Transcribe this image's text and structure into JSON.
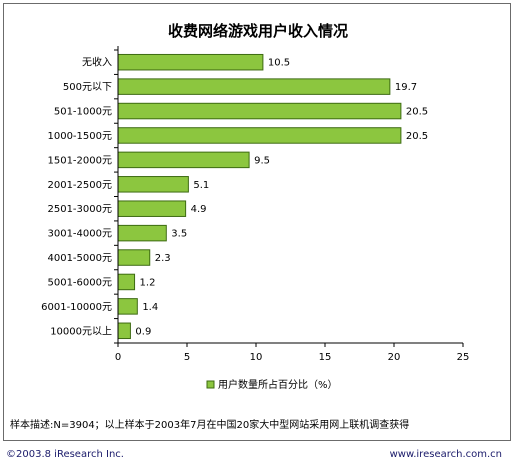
{
  "chart_data": {
    "type": "bar",
    "orientation": "horizontal",
    "title": "收费网络游戏用户收入情况",
    "categories": [
      "无收入",
      "500元以下",
      "501-1000元",
      "1000-1500元",
      "1501-2000元",
      "2001-2500元",
      "2501-3000元",
      "3001-4000元",
      "4001-5000元",
      "5001-6000元",
      "6001-10000元",
      "10000元以上"
    ],
    "series": [
      {
        "name": "用户数量所占百分比（%）",
        "values": [
          10.5,
          19.7,
          20.5,
          20.5,
          9.5,
          5.1,
          4.9,
          3.5,
          2.3,
          1.2,
          1.4,
          0.9
        ],
        "labels": [
          "10.5",
          "19.7",
          "20.5",
          "20.5",
          "9.5",
          "5.1",
          "4.9",
          "3.5",
          "2.3",
          "1.2",
          "1.4",
          "0.9"
        ]
      }
    ],
    "xlim": [
      0,
      25
    ],
    "xticks": [
      "0",
      "5",
      "10",
      "15",
      "20",
      "25"
    ],
    "legend": "bottom",
    "grid": false,
    "colors": {
      "bar": "#8cc63f",
      "bar_stroke": "#3d6b12",
      "axis": "#000000"
    }
  },
  "note": "样本描述:N=3904；以上样本于2003年7月在中国20家大中型网站采用网上联机调查获得",
  "footer": {
    "copyright": "©2003.8 iResearch Inc.",
    "url": "www.iresearch.com.cn"
  }
}
